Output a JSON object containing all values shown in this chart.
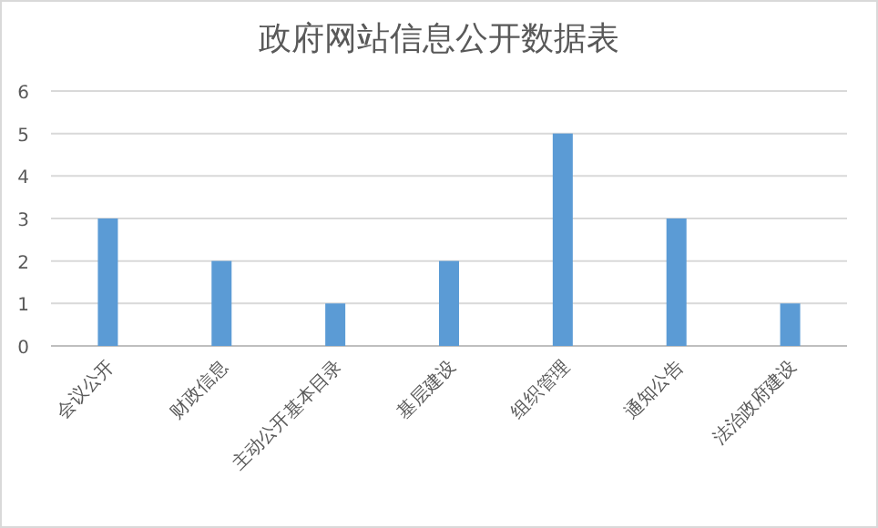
{
  "chart_data": {
    "type": "bar",
    "title": "政府网站信息公开数据表",
    "categories": [
      "会议公开",
      "财政信息",
      "主动公开基本目录",
      "基层建设",
      "组织管理",
      "通知公告",
      "法治政府建设"
    ],
    "values": [
      3,
      2,
      1,
      2,
      5,
      3,
      1
    ],
    "color": "#5b9bd5",
    "ylim": [
      0,
      6
    ],
    "yticks": [
      0,
      1,
      2,
      3,
      4,
      5,
      6
    ],
    "grid": "y"
  }
}
